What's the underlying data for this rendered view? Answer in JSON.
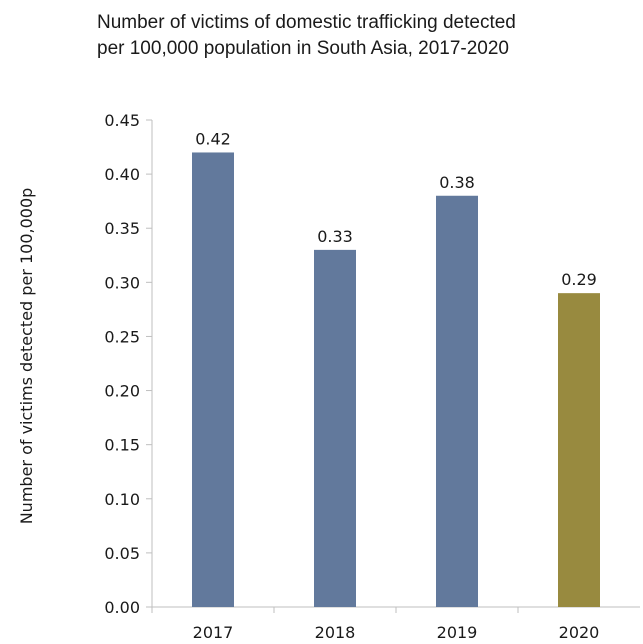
{
  "chart_data": {
    "type": "bar",
    "title_lines": [
      "Number of victims of domestic trafficking detected",
      "per 100,000 population in South Asia, 2017-2020"
    ],
    "xlabel": "",
    "ylabel": "Number of victims detected per 100,000p",
    "categories": [
      "2017",
      "2018",
      "2019",
      "2020"
    ],
    "values": [
      0.42,
      0.33,
      0.38,
      0.29
    ],
    "value_labels": [
      "0.42",
      "0.33",
      "0.38",
      "0.29"
    ],
    "ylim": [
      0,
      0.45
    ],
    "yticks": [
      "0.00",
      "0.05",
      "0.10",
      "0.15",
      "0.20",
      "0.25",
      "0.30",
      "0.35",
      "0.40",
      "0.45"
    ],
    "grid": false,
    "legend": "none",
    "colors": [
      "#62799c",
      "#62799c",
      "#62799c",
      "#988a3f"
    ],
    "axis_color": "#bfbfbf"
  }
}
